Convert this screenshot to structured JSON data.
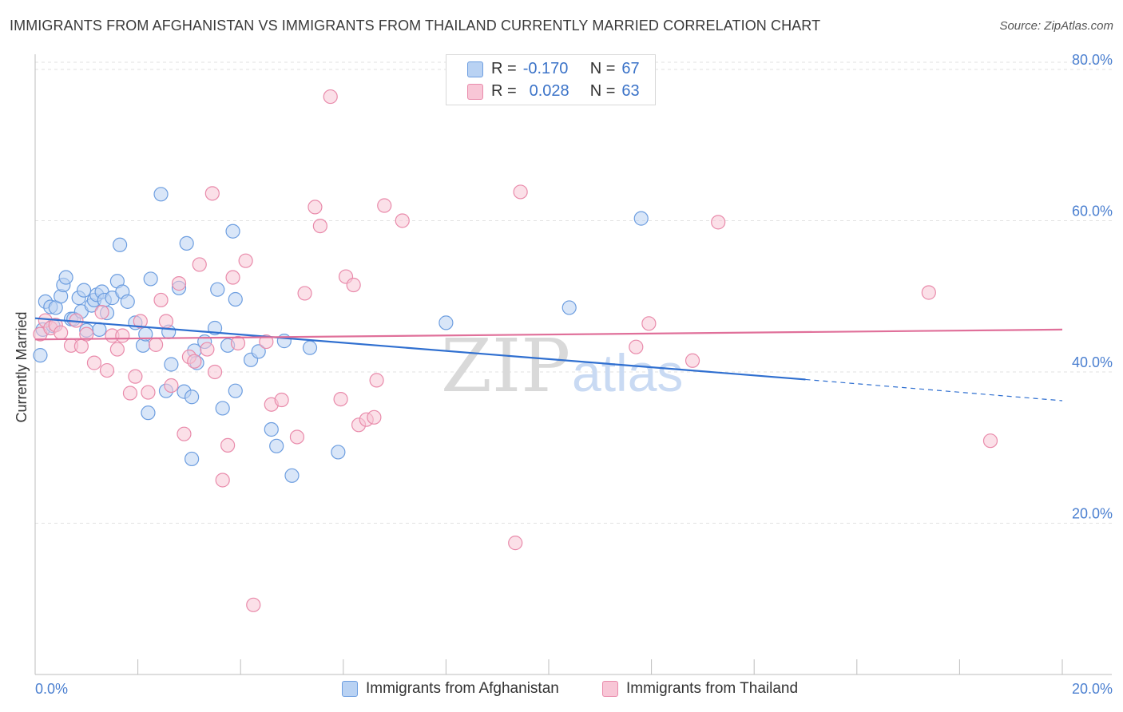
{
  "header": {
    "title": "IMMIGRANTS FROM AFGHANISTAN VS IMMIGRANTS FROM THAILAND CURRENTLY MARRIED CORRELATION CHART",
    "source": "Source: ZipAtlas.com"
  },
  "legend": {
    "r_label": "R =",
    "n_label": "N =",
    "rows": [
      {
        "r": "-0.170",
        "n": "67",
        "color": "#a9c8f0"
      },
      {
        "r": "0.028",
        "n": "63",
        "color": "#f5b8cc"
      }
    ]
  },
  "watermark": {
    "zip": "ZIP",
    "atlas": "atlas"
  },
  "chart_data": {
    "type": "scatter",
    "ylabel": "Currently Married",
    "xlabel": "",
    "xlim": [
      0.0,
      20.0
    ],
    "ylim": [
      0.0,
      82.0
    ],
    "x_ticks": [
      "0.0%",
      "20.0%"
    ],
    "y_ticks": [
      "20.0%",
      "40.0%",
      "60.0%",
      "80.0%"
    ],
    "y_tick_values": [
      20,
      40,
      60,
      80
    ],
    "grid": "horizontal dashed",
    "legend_placement": "bottom",
    "series": [
      {
        "name": "Immigrants from Afghanistan",
        "color": "#6d9ee0",
        "fill": "#b9d2f3",
        "trend": {
          "x0": 0.0,
          "y0": 47.1,
          "x1": 15.0,
          "y1": 39.0,
          "dashed_to_x": 20.0,
          "dashed_to_y": 36.2,
          "color": "#2f6fd0"
        },
        "points": [
          [
            0.1,
            42.2
          ],
          [
            0.15,
            45.6
          ],
          [
            0.2,
            49.3
          ],
          [
            0.3,
            48.6
          ],
          [
            0.35,
            46.1
          ],
          [
            0.4,
            48.5
          ],
          [
            0.5,
            50.0
          ],
          [
            0.55,
            51.5
          ],
          [
            0.6,
            52.5
          ],
          [
            0.7,
            47.0
          ],
          [
            0.75,
            47.0
          ],
          [
            0.85,
            49.8
          ],
          [
            0.9,
            48.0
          ],
          [
            0.95,
            50.8
          ],
          [
            1.0,
            45.5
          ],
          [
            1.1,
            48.8
          ],
          [
            1.15,
            49.5
          ],
          [
            1.2,
            50.2
          ],
          [
            1.25,
            45.6
          ],
          [
            1.3,
            50.6
          ],
          [
            1.35,
            49.5
          ],
          [
            1.4,
            47.8
          ],
          [
            1.5,
            49.8
          ],
          [
            1.6,
            52.0
          ],
          [
            1.65,
            56.8
          ],
          [
            1.7,
            50.6
          ],
          [
            1.8,
            49.3
          ],
          [
            1.95,
            46.5
          ],
          [
            2.1,
            43.5
          ],
          [
            2.15,
            45.0
          ],
          [
            2.2,
            34.6
          ],
          [
            2.25,
            52.3
          ],
          [
            2.45,
            63.5
          ],
          [
            2.55,
            37.5
          ],
          [
            2.6,
            45.3
          ],
          [
            2.65,
            41.0
          ],
          [
            2.8,
            51.1
          ],
          [
            2.9,
            37.4
          ],
          [
            2.95,
            57.0
          ],
          [
            3.05,
            36.7
          ],
          [
            3.05,
            28.5
          ],
          [
            3.1,
            42.8
          ],
          [
            3.15,
            41.2
          ],
          [
            3.3,
            44.0
          ],
          [
            3.5,
            45.8
          ],
          [
            3.55,
            50.9
          ],
          [
            3.65,
            35.2
          ],
          [
            3.75,
            43.5
          ],
          [
            3.85,
            58.6
          ],
          [
            3.9,
            37.5
          ],
          [
            3.9,
            49.6
          ],
          [
            4.2,
            41.6
          ],
          [
            4.35,
            42.7
          ],
          [
            4.6,
            32.4
          ],
          [
            4.7,
            30.2
          ],
          [
            4.85,
            44.1
          ],
          [
            5.0,
            26.3
          ],
          [
            5.35,
            43.2
          ],
          [
            5.9,
            29.4
          ],
          [
            8.0,
            46.5
          ],
          [
            10.4,
            48.5
          ],
          [
            11.8,
            60.3
          ]
        ]
      },
      {
        "name": "Immigrants from Thailand",
        "color": "#e98bab",
        "fill": "#f8c6d6",
        "trend": {
          "x0": 0.0,
          "y0": 44.3,
          "x1": 20.0,
          "y1": 45.6,
          "color": "#e0709a"
        },
        "points": [
          [
            0.1,
            45.0
          ],
          [
            0.2,
            46.8
          ],
          [
            0.3,
            45.8
          ],
          [
            0.4,
            46.2
          ],
          [
            0.5,
            45.2
          ],
          [
            0.7,
            43.5
          ],
          [
            0.8,
            46.8
          ],
          [
            0.9,
            43.4
          ],
          [
            1.0,
            45.0
          ],
          [
            1.15,
            41.2
          ],
          [
            1.3,
            47.9
          ],
          [
            1.4,
            40.2
          ],
          [
            1.5,
            44.8
          ],
          [
            1.6,
            43.0
          ],
          [
            1.7,
            44.8
          ],
          [
            1.85,
            37.2
          ],
          [
            1.95,
            39.4
          ],
          [
            2.05,
            46.7
          ],
          [
            2.2,
            37.3
          ],
          [
            2.35,
            43.6
          ],
          [
            2.45,
            49.5
          ],
          [
            2.55,
            46.7
          ],
          [
            2.65,
            38.2
          ],
          [
            2.8,
            51.7
          ],
          [
            2.9,
            31.8
          ],
          [
            3.0,
            42.0
          ],
          [
            3.1,
            41.4
          ],
          [
            3.2,
            54.2
          ],
          [
            3.35,
            43.0
          ],
          [
            3.45,
            63.6
          ],
          [
            3.5,
            40.0
          ],
          [
            3.65,
            25.7
          ],
          [
            3.75,
            30.3
          ],
          [
            3.85,
            52.5
          ],
          [
            3.95,
            43.8
          ],
          [
            4.1,
            54.7
          ],
          [
            4.25,
            9.2
          ],
          [
            4.5,
            44.0
          ],
          [
            4.6,
            35.7
          ],
          [
            4.8,
            36.3
          ],
          [
            5.1,
            31.4
          ],
          [
            5.25,
            50.4
          ],
          [
            5.45,
            61.8
          ],
          [
            5.55,
            59.3
          ],
          [
            5.75,
            76.4
          ],
          [
            5.95,
            36.4
          ],
          [
            6.05,
            52.6
          ],
          [
            6.2,
            51.5
          ],
          [
            6.3,
            33.0
          ],
          [
            6.45,
            33.7
          ],
          [
            6.6,
            34.0
          ],
          [
            6.65,
            38.9
          ],
          [
            6.8,
            62.0
          ],
          [
            7.15,
            60.0
          ],
          [
            9.35,
            17.4
          ],
          [
            9.45,
            63.8
          ],
          [
            11.7,
            43.3
          ],
          [
            11.95,
            46.4
          ],
          [
            12.8,
            41.5
          ],
          [
            13.3,
            59.8
          ],
          [
            17.4,
            50.5
          ],
          [
            18.6,
            30.9
          ]
        ]
      }
    ]
  }
}
